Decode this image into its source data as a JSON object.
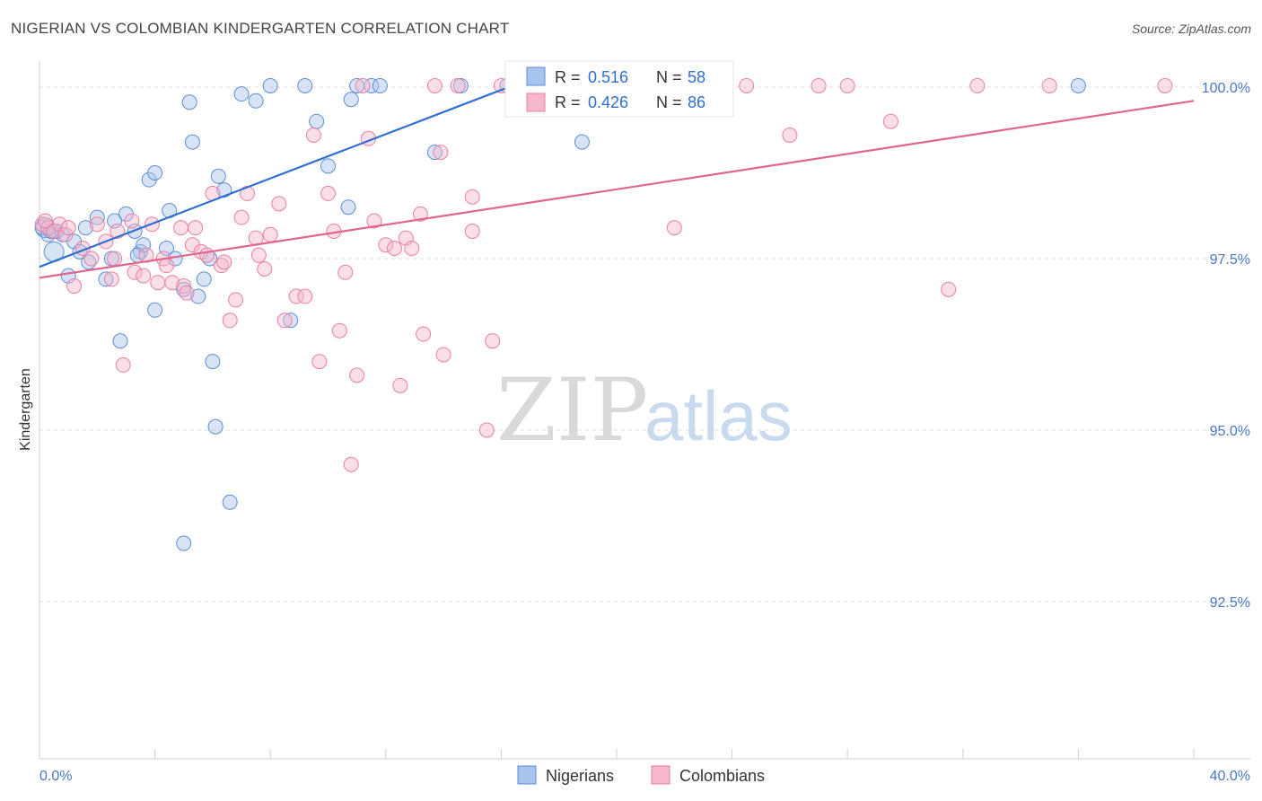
{
  "title": "NIGERIAN VS COLOMBIAN KINDERGARTEN CORRELATION CHART",
  "source": "Source: ZipAtlas.com",
  "watermark": {
    "zip": "ZIP",
    "atlas": "atlas"
  },
  "legend": {
    "r_label": "R =",
    "n_label": "N =",
    "rows": [
      {
        "r": "0.516",
        "n": "58",
        "color": "#a9c4ec"
      },
      {
        "r": "0.426",
        "n": "86",
        "color": "#f5b8cb"
      }
    ]
  },
  "bottom_legend": [
    {
      "label": "Nigerians",
      "color": "#a9c4ec"
    },
    {
      "label": "Colombians",
      "color": "#f5b8cb"
    }
  ],
  "chart_data": {
    "type": "scatter",
    "title": "NIGERIAN VS COLOMBIAN KINDERGARTEN CORRELATION CHART",
    "xlabel": "",
    "ylabel": "Kindergarten",
    "xlim": [
      0,
      40
    ],
    "ylim": [
      90.0,
      100.22
    ],
    "x_tick_labels": [
      "0.0%",
      "40.0%"
    ],
    "y_ticks": [
      {
        "value": 100.0,
        "label": "100.0%"
      },
      {
        "value": 97.5,
        "label": "97.5%"
      },
      {
        "value": 95.0,
        "label": "95.0%"
      },
      {
        "value": 92.5,
        "label": "92.5%"
      }
    ],
    "series": [
      {
        "name": "Nigerians",
        "color": "#5b8fd8",
        "fill": "#a9c4ec",
        "trend": {
          "x0": 0.0,
          "y0": 97.38,
          "x1": 17.5,
          "y1": 100.2,
          "color": "#2f6fd0"
        },
        "points": [
          [
            0.2,
            97.95
          ],
          [
            0.5,
            97.6
          ],
          [
            0.6,
            97.9
          ],
          [
            0.8,
            97.85
          ],
          [
            1.0,
            97.25
          ],
          [
            1.2,
            97.75
          ],
          [
            1.4,
            97.6
          ],
          [
            1.6,
            97.95
          ],
          [
            1.7,
            97.45
          ],
          [
            2.0,
            98.1
          ],
          [
            2.3,
            97.2
          ],
          [
            2.5,
            97.5
          ],
          [
            2.6,
            98.05
          ],
          [
            2.8,
            96.3
          ],
          [
            3.0,
            98.15
          ],
          [
            3.3,
            97.9
          ],
          [
            3.5,
            97.6
          ],
          [
            3.6,
            97.7
          ],
          [
            3.8,
            98.65
          ],
          [
            4.0,
            98.75
          ],
          [
            4.0,
            96.75
          ],
          [
            4.4,
            97.65
          ],
          [
            4.5,
            98.2
          ],
          [
            4.7,
            97.5
          ],
          [
            5.0,
            97.05
          ],
          [
            5.0,
            93.35
          ],
          [
            5.2,
            99.78
          ],
          [
            5.3,
            99.2
          ],
          [
            5.5,
            96.95
          ],
          [
            5.7,
            97.2
          ],
          [
            5.9,
            97.5
          ],
          [
            6.0,
            96.0
          ],
          [
            6.1,
            95.05
          ],
          [
            6.2,
            98.7
          ],
          [
            6.4,
            98.5
          ],
          [
            6.6,
            93.95
          ],
          [
            7.0,
            99.9
          ],
          [
            7.5,
            99.8
          ],
          [
            8.0,
            100.02
          ],
          [
            8.7,
            96.6
          ],
          [
            9.2,
            100.02
          ],
          [
            9.6,
            99.5
          ],
          [
            10.0,
            98.85
          ],
          [
            10.7,
            98.25
          ],
          [
            10.8,
            99.82
          ],
          [
            11.0,
            100.02
          ],
          [
            11.5,
            100.02
          ],
          [
            11.8,
            100.02
          ],
          [
            13.7,
            99.05
          ],
          [
            14.6,
            100.02
          ],
          [
            16.2,
            100.02
          ],
          [
            18.0,
            100.02
          ],
          [
            18.8,
            99.2
          ],
          [
            36.0,
            100.02
          ],
          [
            0.1,
            97.95
          ],
          [
            0.3,
            97.85
          ],
          [
            0.4,
            97.9
          ],
          [
            3.4,
            97.55
          ]
        ]
      },
      {
        "name": "Colombians",
        "color": "#ea7fa0",
        "fill": "#f5b8cb",
        "trend": {
          "x0": 0.0,
          "y0": 97.22,
          "x1": 40.0,
          "y1": 99.8,
          "color": "#e0668f"
        },
        "points": [
          [
            0.1,
            98.0
          ],
          [
            0.3,
            97.95
          ],
          [
            0.5,
            97.9
          ],
          [
            0.7,
            98.0
          ],
          [
            0.9,
            97.85
          ],
          [
            1.2,
            97.1
          ],
          [
            1.5,
            97.65
          ],
          [
            1.8,
            97.5
          ],
          [
            2.0,
            98.0
          ],
          [
            2.3,
            97.75
          ],
          [
            2.5,
            97.2
          ],
          [
            2.6,
            97.5
          ],
          [
            2.7,
            97.9
          ],
          [
            2.9,
            95.95
          ],
          [
            3.2,
            98.05
          ],
          [
            3.3,
            97.3
          ],
          [
            3.6,
            97.25
          ],
          [
            3.7,
            97.55
          ],
          [
            3.9,
            98.0
          ],
          [
            4.1,
            97.15
          ],
          [
            4.3,
            97.5
          ],
          [
            4.4,
            97.4
          ],
          [
            4.6,
            97.15
          ],
          [
            4.9,
            97.95
          ],
          [
            5.0,
            97.1
          ],
          [
            5.1,
            97.0
          ],
          [
            5.3,
            97.7
          ],
          [
            5.4,
            97.95
          ],
          [
            5.6,
            97.6
          ],
          [
            5.8,
            97.55
          ],
          [
            6.0,
            98.45
          ],
          [
            6.3,
            97.4
          ],
          [
            6.4,
            97.45
          ],
          [
            6.6,
            96.6
          ],
          [
            6.8,
            96.9
          ],
          [
            7.0,
            98.1
          ],
          [
            7.2,
            98.45
          ],
          [
            7.5,
            97.8
          ],
          [
            7.6,
            97.55
          ],
          [
            7.8,
            97.35
          ],
          [
            8.0,
            97.85
          ],
          [
            8.3,
            98.3
          ],
          [
            8.5,
            96.6
          ],
          [
            8.9,
            96.95
          ],
          [
            9.2,
            96.95
          ],
          [
            9.5,
            99.3
          ],
          [
            9.7,
            96.0
          ],
          [
            10.0,
            98.45
          ],
          [
            10.2,
            97.9
          ],
          [
            10.4,
            96.45
          ],
          [
            10.6,
            97.3
          ],
          [
            10.8,
            94.5
          ],
          [
            11.0,
            95.8
          ],
          [
            11.2,
            100.02
          ],
          [
            11.4,
            99.25
          ],
          [
            11.6,
            98.05
          ],
          [
            12.0,
            97.7
          ],
          [
            12.3,
            97.65
          ],
          [
            12.5,
            95.65
          ],
          [
            12.7,
            97.8
          ],
          [
            12.9,
            97.65
          ],
          [
            13.2,
            98.15
          ],
          [
            13.3,
            96.4
          ],
          [
            13.7,
            100.02
          ],
          [
            13.9,
            99.05
          ],
          [
            14.0,
            96.1
          ],
          [
            14.5,
            100.02
          ],
          [
            15.0,
            98.4
          ],
          [
            15.0,
            97.9
          ],
          [
            15.5,
            95.0
          ],
          [
            15.7,
            96.3
          ],
          [
            16.0,
            100.02
          ],
          [
            17.0,
            100.02
          ],
          [
            19.0,
            100.02
          ],
          [
            22.0,
            97.95
          ],
          [
            24.5,
            100.02
          ],
          [
            26.0,
            99.3
          ],
          [
            27.0,
            100.02
          ],
          [
            28.0,
            100.02
          ],
          [
            29.5,
            99.5
          ],
          [
            31.5,
            97.05
          ],
          [
            32.5,
            100.02
          ],
          [
            35.0,
            100.02
          ],
          [
            39.0,
            100.02
          ],
          [
            0.2,
            98.05
          ],
          [
            1.0,
            97.95
          ]
        ]
      }
    ]
  }
}
